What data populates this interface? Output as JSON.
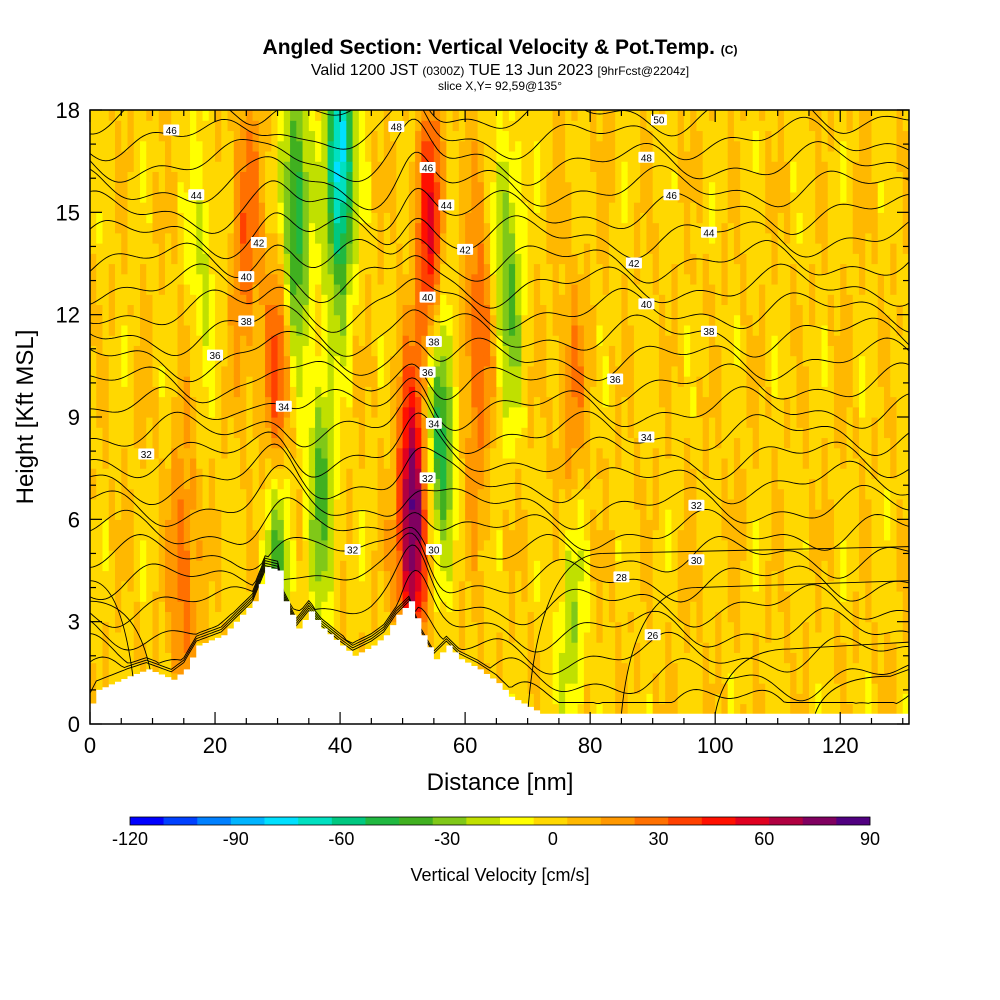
{
  "title": {
    "main": "Angled Section: Vertical Velocity & Pot.Temp.",
    "main_suffix": "(C)",
    "valid_prefix": "Valid 1200 JST",
    "valid_zulu": "(0300Z)",
    "valid_date": "TUE 13 Jun 2023",
    "valid_fcst": "[9hrFcst@2204z]",
    "slice": "slice X,Y= 92,59@135°"
  },
  "chart_data": {
    "type": "heatmap",
    "xlabel": "Distance [nm]",
    "ylabel": "Height [Kft MSL]",
    "xlim": [
      0,
      131
    ],
    "ylim": [
      0,
      18
    ],
    "xticks": [
      0,
      20,
      40,
      60,
      80,
      100,
      120
    ],
    "yticks": [
      0,
      3,
      6,
      9,
      12,
      15,
      18
    ],
    "colorbar": {
      "label": "Vertical Velocity [cm/s]",
      "min": -120,
      "max": 90,
      "step": 10,
      "tick_labels": [
        -120,
        -90,
        -60,
        -30,
        0,
        30,
        60,
        90
      ],
      "colors": [
        "#0000ff",
        "#0040ff",
        "#0080ff",
        "#00b4ff",
        "#00e0ff",
        "#00e0c0",
        "#00c880",
        "#20b840",
        "#40b020",
        "#80c818",
        "#c0e000",
        "#ffff00",
        "#ffd800",
        "#ffb800",
        "#ff9800",
        "#ff7000",
        "#ff4000",
        "#ff1000",
        "#e00020",
        "#b00040",
        "#800060",
        "#500080"
      ]
    },
    "theta_contours_c": [
      26,
      28,
      30,
      32,
      34,
      36,
      38,
      40,
      42,
      44,
      46,
      48,
      50
    ],
    "updraft_maxima": [
      {
        "x": 51.5,
        "y": 6.0,
        "w": 90
      },
      {
        "x": 54.5,
        "y": 14.0,
        "w": 55
      },
      {
        "x": 30.0,
        "y": 9.5,
        "w": 45
      },
      {
        "x": 62.0,
        "y": 11.0,
        "w": 35
      },
      {
        "x": 25.0,
        "y": 14.5,
        "w": 30
      },
      {
        "x": 15.0,
        "y": 4.5,
        "w": 30
      },
      {
        "x": 77.0,
        "y": 9.0,
        "w": 25
      }
    ],
    "downdraft_minima": [
      {
        "x": 40.0,
        "y": 16.5,
        "w": -90
      },
      {
        "x": 33.0,
        "y": 15.0,
        "w": -60
      },
      {
        "x": 56.0,
        "y": 9.0,
        "w": -60
      },
      {
        "x": 30.0,
        "y": 5.0,
        "w": -50
      },
      {
        "x": 37.0,
        "y": 7.0,
        "w": -40
      },
      {
        "x": 67.0,
        "y": 13.0,
        "w": -40
      },
      {
        "x": 77.0,
        "y": 3.5,
        "w": -30
      },
      {
        "x": 18.0,
        "y": 14.0,
        "w": -20
      }
    ],
    "terrain": [
      {
        "x": 0,
        "h": 0.6
      },
      {
        "x": 1,
        "h": 1.0
      },
      {
        "x": 6,
        "h": 1.4
      },
      {
        "x": 9,
        "h": 1.6
      },
      {
        "x": 13,
        "h": 1.3
      },
      {
        "x": 15,
        "h": 1.6
      },
      {
        "x": 17,
        "h": 2.3
      },
      {
        "x": 21,
        "h": 2.6
      },
      {
        "x": 23,
        "h": 3.0
      },
      {
        "x": 26,
        "h": 3.6
      },
      {
        "x": 28,
        "h": 4.6
      },
      {
        "x": 30,
        "h": 4.5
      },
      {
        "x": 31,
        "h": 3.6
      },
      {
        "x": 33,
        "h": 2.8
      },
      {
        "x": 35,
        "h": 3.3
      },
      {
        "x": 37,
        "h": 2.8
      },
      {
        "x": 40,
        "h": 2.3
      },
      {
        "x": 42,
        "h": 2.0
      },
      {
        "x": 45,
        "h": 2.3
      },
      {
        "x": 47,
        "h": 2.6
      },
      {
        "x": 49,
        "h": 3.2
      },
      {
        "x": 51,
        "h": 3.6
      },
      {
        "x": 53,
        "h": 2.6
      },
      {
        "x": 55,
        "h": 1.9
      },
      {
        "x": 57,
        "h": 2.3
      },
      {
        "x": 59,
        "h": 1.9
      },
      {
        "x": 62,
        "h": 1.6
      },
      {
        "x": 65,
        "h": 1.2
      },
      {
        "x": 67,
        "h": 0.8
      },
      {
        "x": 70,
        "h": 0.5
      },
      {
        "x": 72,
        "h": 0.3
      },
      {
        "x": 131,
        "h": 0.3
      }
    ],
    "contour_labels": [
      {
        "x": 13,
        "y": 17.4,
        "v": "46"
      },
      {
        "x": 17,
        "y": 15.5,
        "v": "44"
      },
      {
        "x": 27,
        "y": 14.1,
        "v": "42"
      },
      {
        "x": 25,
        "y": 13.1,
        "v": "40"
      },
      {
        "x": 25,
        "y": 11.8,
        "v": "38"
      },
      {
        "x": 20,
        "y": 10.8,
        "v": "36"
      },
      {
        "x": 31,
        "y": 9.3,
        "v": "34"
      },
      {
        "x": 9,
        "y": 7.9,
        "v": "32"
      },
      {
        "x": 42,
        "y": 5.1,
        "v": "32"
      },
      {
        "x": 49,
        "y": 17.5,
        "v": "48"
      },
      {
        "x": 54,
        "y": 16.3,
        "v": "46"
      },
      {
        "x": 57,
        "y": 15.2,
        "v": "44"
      },
      {
        "x": 60,
        "y": 13.9,
        "v": "42"
      },
      {
        "x": 54,
        "y": 12.5,
        "v": "40"
      },
      {
        "x": 55,
        "y": 11.2,
        "v": "38"
      },
      {
        "x": 54,
        "y": 10.3,
        "v": "36"
      },
      {
        "x": 55,
        "y": 8.8,
        "v": "34"
      },
      {
        "x": 54,
        "y": 7.2,
        "v": "32"
      },
      {
        "x": 55,
        "y": 5.1,
        "v": "30"
      },
      {
        "x": 91,
        "y": 17.7,
        "v": "50"
      },
      {
        "x": 89,
        "y": 16.6,
        "v": "48"
      },
      {
        "x": 93,
        "y": 15.5,
        "v": "46"
      },
      {
        "x": 99,
        "y": 14.4,
        "v": "44"
      },
      {
        "x": 87,
        "y": 13.5,
        "v": "42"
      },
      {
        "x": 89,
        "y": 12.3,
        "v": "40"
      },
      {
        "x": 99,
        "y": 11.5,
        "v": "38"
      },
      {
        "x": 84,
        "y": 10.1,
        "v": "36"
      },
      {
        "x": 89,
        "y": 8.4,
        "v": "34"
      },
      {
        "x": 97,
        "y": 6.4,
        "v": "32"
      },
      {
        "x": 97,
        "y": 4.8,
        "v": "30"
      },
      {
        "x": 85,
        "y": 4.3,
        "v": "28"
      },
      {
        "x": 90,
        "y": 2.6,
        "v": "26"
      }
    ]
  }
}
